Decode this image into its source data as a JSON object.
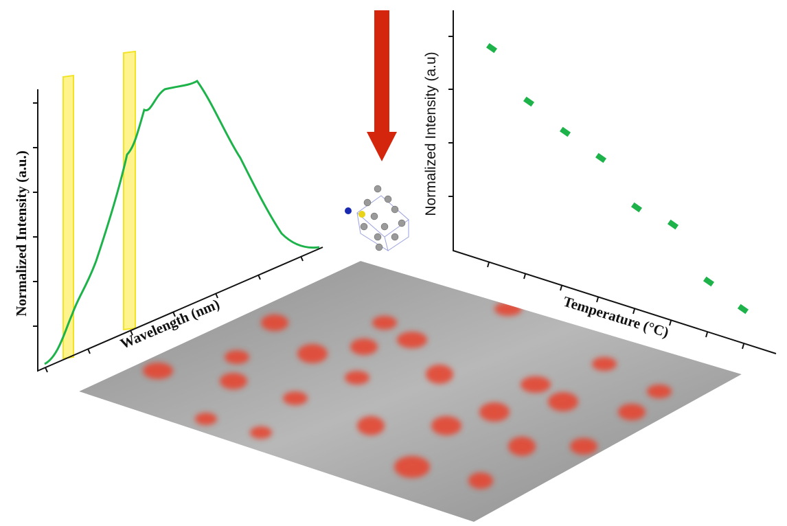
{
  "left_chart": {
    "y_label": "Normalized Intensity (a.u.)",
    "x_label": "Wavelength (nm)"
  },
  "right_chart": {
    "y_label": "Normalized Intensity (a.u)",
    "x_label": "Temperature (°C)"
  }
}
